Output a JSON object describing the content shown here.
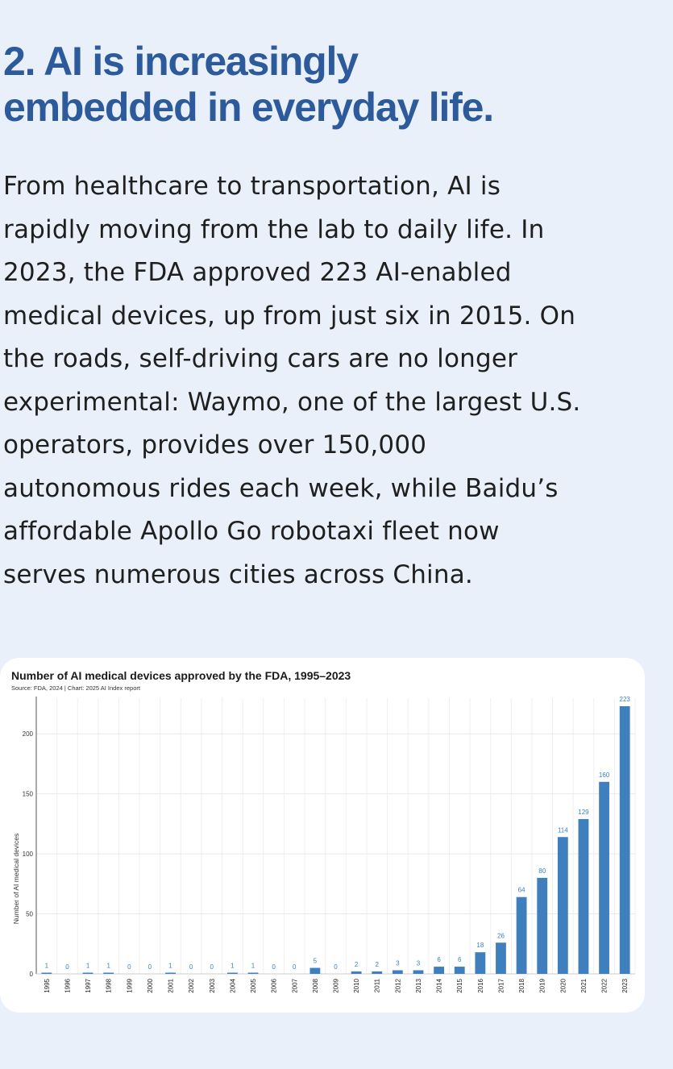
{
  "article": {
    "heading_lines": [
      "2. AI is increasingly",
      "embedded in everyday life."
    ],
    "body_lines": [
      "From healthcare to transportation, AI is",
      "rapidly moving from the lab to daily life. In",
      "2023, the FDA approved 223 AI-enabled",
      "medical devices, up from just six in 2015. On",
      "the roads, self-driving cars are no longer",
      "experimental: Waymo, one of the largest U.S.",
      "operators, provides over 150,000",
      "autonomous rides each week, while Baidu’s",
      "affordable Apollo Go robotaxi fleet now",
      "serves numerous cities across China."
    ]
  },
  "colors": {
    "background": "#e9f0fa",
    "heading": "#2c5a9a",
    "bar": "#3f7fbd",
    "data_label": "#3f7fbd",
    "card": "#ffffff"
  },
  "chart_data": {
    "type": "bar",
    "title": "Number of AI medical devices approved by the FDA, 1995–2023",
    "subtitle": "Source: FDA, 2024 | Chart: 2025 AI Index report",
    "xlabel": "",
    "ylabel": "Number of AI medical devices",
    "ylim": [
      0,
      223
    ],
    "yticks": [
      0,
      50,
      100,
      150,
      200
    ],
    "grid": true,
    "categories": [
      "1995",
      "1996",
      "1997",
      "1998",
      "1999",
      "2000",
      "2001",
      "2002",
      "2003",
      "2004",
      "2005",
      "2006",
      "2007",
      "2008",
      "2009",
      "2010",
      "2011",
      "2012",
      "2013",
      "2014",
      "2015",
      "2016",
      "2017",
      "2018",
      "2019",
      "2020",
      "2021",
      "2022",
      "2023"
    ],
    "values": [
      1,
      0,
      1,
      1,
      0,
      0,
      1,
      0,
      0,
      1,
      1,
      0,
      0,
      5,
      0,
      2,
      2,
      3,
      3,
      6,
      6,
      18,
      26,
      64,
      80,
      114,
      129,
      160,
      223
    ]
  }
}
